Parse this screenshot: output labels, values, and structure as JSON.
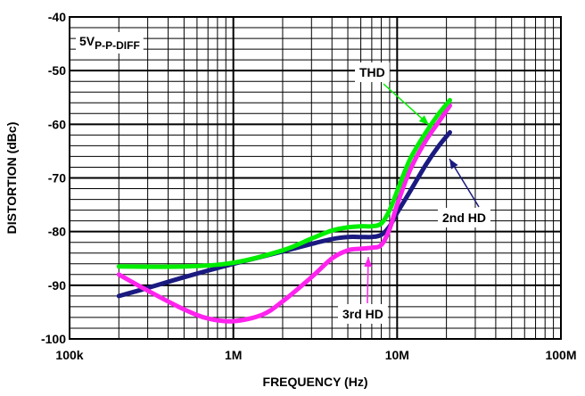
{
  "chart_data": {
    "type": "line",
    "title": "",
    "xlabel": "FREQUENCY (Hz)",
    "ylabel": "DISTORTION (dBc)",
    "xscale": "log",
    "xlim": [
      100000,
      100000000
    ],
    "ylim": [
      -100,
      -40
    ],
    "grid": true,
    "x_tick_labels": [
      "100k",
      "1M",
      "10M",
      "100M"
    ],
    "y_tick_labels": [
      "-40",
      "-50",
      "-60",
      "-70",
      "-80",
      "-90",
      "-100"
    ],
    "condition_label": {
      "main": "5V",
      "subscript": "P-P-DIFF"
    },
    "series": [
      {
        "name": "THD",
        "color": "#00ee00",
        "points": [
          [
            200000,
            -86.5
          ],
          [
            500000,
            -86.5
          ],
          [
            1000000,
            -85.8
          ],
          [
            2000000,
            -83.5
          ],
          [
            3000000,
            -81.3
          ],
          [
            4000000,
            -79.8
          ],
          [
            5000000,
            -79.2
          ],
          [
            6000000,
            -79.0
          ],
          [
            7000000,
            -79.0
          ],
          [
            8000000,
            -78.5
          ],
          [
            9000000,
            -76.0
          ],
          [
            10000000,
            -72.5
          ],
          [
            12000000,
            -66.5
          ],
          [
            15000000,
            -61.5
          ],
          [
            18000000,
            -58.0
          ],
          [
            21000000,
            -55.5
          ]
        ]
      },
      {
        "name": "2nd HD",
        "color": "#1a1a80",
        "points": [
          [
            200000,
            -92.0
          ],
          [
            300000,
            -90.5
          ],
          [
            500000,
            -88.5
          ],
          [
            1000000,
            -86.0
          ],
          [
            2000000,
            -83.7
          ],
          [
            3000000,
            -82.3
          ],
          [
            4000000,
            -81.4
          ],
          [
            5000000,
            -81.0
          ],
          [
            6000000,
            -81.0
          ],
          [
            7000000,
            -81.0
          ],
          [
            8000000,
            -80.6
          ],
          [
            9000000,
            -79.0
          ],
          [
            10000000,
            -76.5
          ],
          [
            12000000,
            -72.5
          ],
          [
            15000000,
            -67.5
          ],
          [
            18000000,
            -64.0
          ],
          [
            21000000,
            -61.5
          ]
        ]
      },
      {
        "name": "3rd HD",
        "color": "#ff22ee",
        "points": [
          [
            200000,
            -88.0
          ],
          [
            300000,
            -91.0
          ],
          [
            500000,
            -94.5
          ],
          [
            700000,
            -96.2
          ],
          [
            1000000,
            -96.7
          ],
          [
            1500000,
            -95.5
          ],
          [
            2000000,
            -93.0
          ],
          [
            3000000,
            -88.5
          ],
          [
            4000000,
            -85.0
          ],
          [
            5000000,
            -83.5
          ],
          [
            6000000,
            -83.2
          ],
          [
            7000000,
            -83.0
          ],
          [
            8000000,
            -82.5
          ],
          [
            9000000,
            -79.5
          ],
          [
            10000000,
            -75.0
          ],
          [
            12000000,
            -68.5
          ],
          [
            15000000,
            -63.0
          ],
          [
            18000000,
            -59.5
          ],
          [
            21000000,
            -56.5
          ]
        ]
      }
    ]
  }
}
